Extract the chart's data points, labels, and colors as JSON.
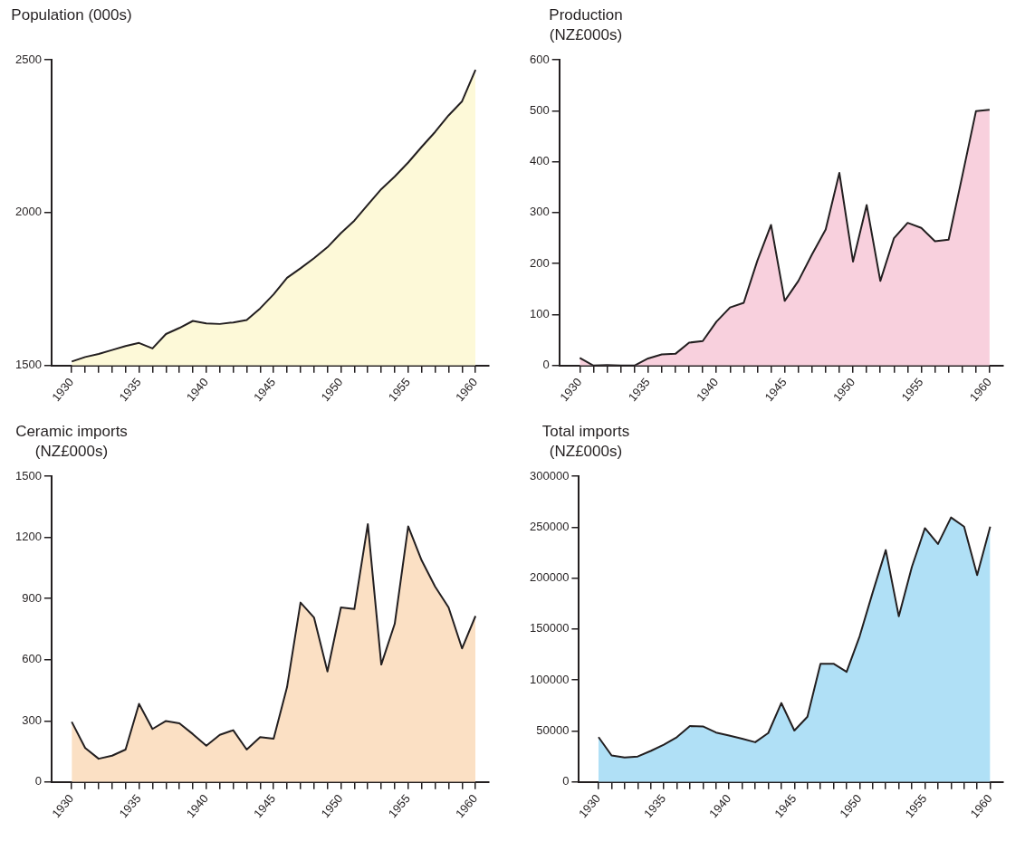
{
  "chart_data": [
    {
      "type": "area",
      "ylabel": "Population (000s)",
      "x": [
        1930,
        1931,
        1932,
        1933,
        1934,
        1935,
        1936,
        1937,
        1938,
        1939,
        1940,
        1941,
        1942,
        1943,
        1944,
        1945,
        1946,
        1947,
        1948,
        1949,
        1950,
        1951,
        1952,
        1953,
        1954,
        1955,
        1956,
        1957,
        1958,
        1959,
        1960
      ],
      "series": [
        {
          "color": "#fdf9d8",
          "values": [
            1513,
            1528,
            1538,
            1551,
            1564,
            1574,
            1556,
            1603,
            1623,
            1646,
            1638,
            1636,
            1641,
            1649,
            1687,
            1733,
            1787,
            1818,
            1851,
            1887,
            1933,
            1974,
            2026,
            2077,
            2118,
            2164,
            2215,
            2264,
            2318,
            2364,
            2467
          ]
        }
      ],
      "xlim": [
        1928.5,
        1961
      ],
      "ylim": [
        1500,
        2500
      ],
      "yticks": [
        1500,
        2000,
        2500
      ],
      "xticks": [
        1930,
        {
          "value": 1931,
          "label": null
        },
        {
          "value": 1932,
          "label": null
        },
        {
          "value": 1933,
          "label": null
        },
        {
          "value": 1934,
          "label": null
        },
        1935,
        {
          "value": 1936,
          "label": null
        },
        {
          "value": 1937,
          "label": null
        },
        {
          "value": 1938,
          "label": null
        },
        {
          "value": 1939,
          "label": null
        },
        1940,
        {
          "value": 1941,
          "label": null
        },
        {
          "value": 1942,
          "label": null
        },
        {
          "value": 1943,
          "label": null
        },
        {
          "value": 1944,
          "label": null
        },
        1945,
        {
          "value": 1946,
          "label": null
        },
        {
          "value": 1947,
          "label": null
        },
        {
          "value": 1948,
          "label": null
        },
        {
          "value": 1949,
          "label": null
        },
        1950,
        {
          "value": 1951,
          "label": null
        },
        {
          "value": 1952,
          "label": null
        },
        {
          "value": 1953,
          "label": null
        },
        {
          "value": 1954,
          "label": null
        },
        1955,
        {
          "value": 1956,
          "label": null
        },
        {
          "value": 1957,
          "label": null
        },
        {
          "value": 1958,
          "label": null
        },
        {
          "value": 1959,
          "label": null
        },
        1960
      ],
      "grid": false,
      "legend": false,
      "marker": "none"
    },
    {
      "type": "area",
      "ylabel": "Production (NZ£000s)",
      "x": [
        1930,
        1931,
        1932,
        1933,
        1934,
        1935,
        1936,
        1937,
        1938,
        1939,
        1940,
        1941,
        1942,
        1943,
        1944,
        1945,
        1946,
        1947,
        1948,
        1949,
        1950,
        1951,
        1952,
        1953,
        1954,
        1955,
        1956,
        1957,
        1958,
        1959,
        1960
      ],
      "series": [
        {
          "color": "#f8d0dd",
          "values": [
            15,
            0,
            1,
            0,
            0,
            14,
            22,
            23,
            45,
            48,
            86,
            114,
            123,
            206,
            276,
            127,
            166,
            218,
            267,
            378,
            204,
            315,
            166,
            250,
            280,
            270,
            244,
            247,
            372,
            499,
            502
          ]
        }
      ],
      "xlim": [
        1928.5,
        1961
      ],
      "ylim": [
        0,
        600
      ],
      "yticks": [
        0,
        100,
        200,
        300,
        400,
        500,
        600
      ],
      "xticks": [
        1930,
        {
          "value": 1931,
          "label": null
        },
        {
          "value": 1932,
          "label": null
        },
        {
          "value": 1933,
          "label": null
        },
        {
          "value": 1934,
          "label": null
        },
        1935,
        {
          "value": 1936,
          "label": null
        },
        {
          "value": 1937,
          "label": null
        },
        {
          "value": 1938,
          "label": null
        },
        {
          "value": 1939,
          "label": null
        },
        1940,
        {
          "value": 1941,
          "label": null
        },
        {
          "value": 1942,
          "label": null
        },
        {
          "value": 1943,
          "label": null
        },
        {
          "value": 1944,
          "label": null
        },
        1945,
        {
          "value": 1946,
          "label": null
        },
        {
          "value": 1947,
          "label": null
        },
        {
          "value": 1948,
          "label": null
        },
        {
          "value": 1949,
          "label": null
        },
        1950,
        {
          "value": 1951,
          "label": null
        },
        {
          "value": 1952,
          "label": null
        },
        {
          "value": 1953,
          "label": null
        },
        {
          "value": 1954,
          "label": null
        },
        1955,
        {
          "value": 1956,
          "label": null
        },
        {
          "value": 1957,
          "label": null
        },
        {
          "value": 1958,
          "label": null
        },
        {
          "value": 1959,
          "label": null
        },
        1960
      ],
      "grid": false,
      "legend": false,
      "marker": "none"
    },
    {
      "type": "area",
      "ylabel": "Ceramic imports (NZ£000s)",
      "x": [
        1930,
        1931,
        1932,
        1933,
        1934,
        1935,
        1936,
        1937,
        1938,
        1939,
        1940,
        1941,
        1942,
        1943,
        1944,
        1945,
        1946,
        1947,
        1948,
        1949,
        1950,
        1951,
        1952,
        1953,
        1954,
        1955,
        1956,
        1957,
        1958,
        1959,
        1960
      ],
      "series": [
        {
          "color": "#fbe0c4",
          "values": [
            295,
            167,
            114,
            129,
            159,
            383,
            260,
            299,
            288,
            235,
            178,
            231,
            254,
            159,
            220,
            212,
            466,
            880,
            807,
            542,
            856,
            848,
            1265,
            576,
            776,
            1254,
            1087,
            958,
            856,
            655,
            814
          ]
        }
      ],
      "xlim": [
        1928.5,
        1961
      ],
      "ylim": [
        0,
        1500
      ],
      "yticks": [
        0,
        300,
        600,
        900,
        1200,
        1500
      ],
      "xticks": [
        1930,
        {
          "value": 1931,
          "label": null
        },
        {
          "value": 1932,
          "label": null
        },
        {
          "value": 1933,
          "label": null
        },
        {
          "value": 1934,
          "label": null
        },
        1935,
        {
          "value": 1936,
          "label": null
        },
        {
          "value": 1937,
          "label": null
        },
        {
          "value": 1938,
          "label": null
        },
        {
          "value": 1939,
          "label": null
        },
        1940,
        {
          "value": 1941,
          "label": null
        },
        {
          "value": 1942,
          "label": null
        },
        {
          "value": 1943,
          "label": null
        },
        {
          "value": 1944,
          "label": null
        },
        1945,
        {
          "value": 1946,
          "label": null
        },
        {
          "value": 1947,
          "label": null
        },
        {
          "value": 1948,
          "label": null
        },
        {
          "value": 1949,
          "label": null
        },
        1950,
        {
          "value": 1951,
          "label": null
        },
        {
          "value": 1952,
          "label": null
        },
        {
          "value": 1953,
          "label": null
        },
        {
          "value": 1954,
          "label": null
        },
        1955,
        {
          "value": 1956,
          "label": null
        },
        {
          "value": 1957,
          "label": null
        },
        {
          "value": 1958,
          "label": null
        },
        {
          "value": 1959,
          "label": null
        },
        1960
      ],
      "grid": false,
      "legend": false,
      "marker": "none"
    },
    {
      "type": "area",
      "ylabel": "Total imports (NZ£000s)",
      "x": [
        1930,
        1931,
        1932,
        1933,
        1934,
        1935,
        1936,
        1937,
        1938,
        1939,
        1940,
        1941,
        1942,
        1943,
        1944,
        1945,
        1946,
        1947,
        1948,
        1949,
        1950,
        1951,
        1952,
        1953,
        1954,
        1955,
        1956,
        1957,
        1958,
        1959,
        1960
      ],
      "series": [
        {
          "color": "#b0e0f6",
          "values": [
            44000,
            26000,
            24000,
            25000,
            30500,
            36500,
            44000,
            55000,
            54500,
            48500,
            45500,
            42500,
            39000,
            48000,
            77500,
            50500,
            64000,
            116000,
            116000,
            108000,
            143000,
            186000,
            227500,
            162500,
            211000,
            249000,
            233500,
            259500,
            250500,
            203000,
            250500
          ]
        }
      ],
      "xlim": [
        1928.5,
        1961
      ],
      "ylim": [
        0,
        300000
      ],
      "yticks": [
        0,
        50000,
        100000,
        150000,
        200000,
        250000,
        300000
      ],
      "xticks": [
        1930,
        {
          "value": 1931,
          "label": null
        },
        {
          "value": 1932,
          "label": null
        },
        {
          "value": 1933,
          "label": null
        },
        {
          "value": 1934,
          "label": null
        },
        1935,
        {
          "value": 1936,
          "label": null
        },
        {
          "value": 1937,
          "label": null
        },
        {
          "value": 1938,
          "label": null
        },
        {
          "value": 1939,
          "label": null
        },
        1940,
        {
          "value": 1941,
          "label": null
        },
        {
          "value": 1942,
          "label": null
        },
        {
          "value": 1943,
          "label": null
        },
        {
          "value": 1944,
          "label": null
        },
        1945,
        {
          "value": 1946,
          "label": null
        },
        {
          "value": 1947,
          "label": null
        },
        {
          "value": 1948,
          "label": null
        },
        {
          "value": 1949,
          "label": null
        },
        1950,
        {
          "value": 1951,
          "label": null
        },
        {
          "value": 1952,
          "label": null
        },
        {
          "value": 1953,
          "label": null
        },
        {
          "value": 1954,
          "label": null
        },
        1955,
        {
          "value": 1956,
          "label": null
        },
        {
          "value": 1957,
          "label": null
        },
        {
          "value": 1958,
          "label": null
        },
        {
          "value": 1959,
          "label": null
        },
        1960
      ],
      "grid": false,
      "legend": false,
      "marker": "none"
    }
  ]
}
